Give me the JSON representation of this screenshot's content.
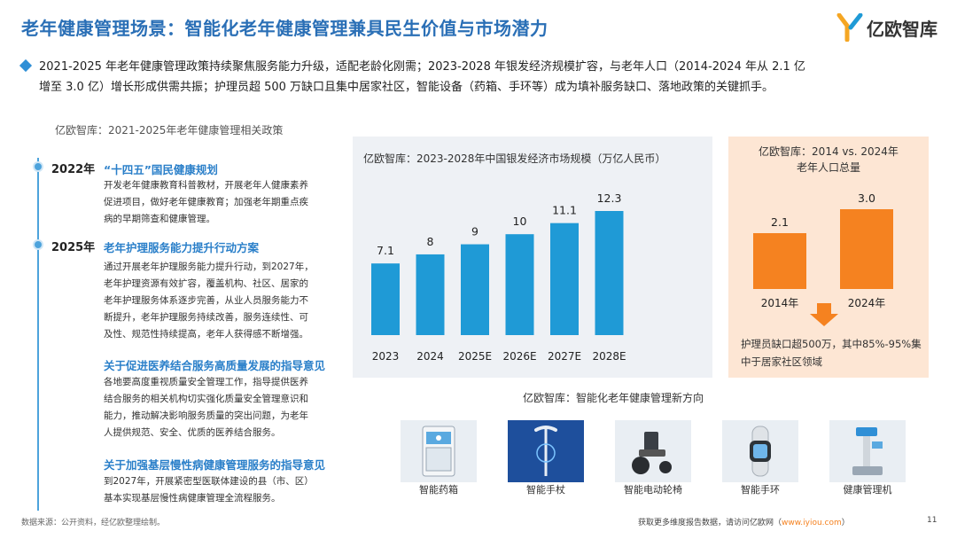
{
  "header": {
    "title": "老年健康管理场景：智能化老年健康管理兼具民生价值与市场潜力",
    "logo_text": "亿欧智库"
  },
  "summary": {
    "line1": "2021-2025 年老年健康管理政策持续聚焦服务能力升级，适配老龄化刚需；2023-2028 年银发经济规模扩容，与老年人口（2014-2024 年从 2.1 亿",
    "line2": "增至 3.0 亿）增长形成供需共振；护理员超 500 万缺口且集中居家社区，智能设备（药箱、手环等）成为填补服务缺口、落地政策的关键抓手。"
  },
  "policy": {
    "caption": "亿欧智库：2021-2025年老年健康管理相关政策",
    "items": [
      {
        "year": "2022年",
        "title": "“十四五”国民健康规划",
        "lines": [
          "开发老年健康教育科普教材，开展老年人健康素养",
          "促进项目，做好老年健康教育；加强老年期重点疾",
          "病的早期筛查和健康管理。"
        ]
      },
      {
        "year": "2025年",
        "title": "老年护理服务能力提升行动方案",
        "lines": [
          "通过开展老年护理服务能力提升行动，到2027年，",
          "老年护理资源有效扩容，覆盖机构、社区、居家的",
          "老年护理服务体系逐步完善，从业人员服务能力不",
          "断提升，老年护理服务持续改善，服务连续性、可",
          "及性、规范性持续提高，老年人获得感不断增强。"
        ]
      },
      {
        "year": "",
        "title": "关于促进医养结合服务高质量发展的指导意见",
        "lines": [
          "各地要高度重视质量安全管理工作，指导提供医养",
          "结合服务的相关机构切实强化质量安全管理意识和",
          "能力，推动解决影响服务质量的突出问题，为老年",
          "人提供规范、安全、优质的医养结合服务。"
        ]
      },
      {
        "year": "",
        "title": "关于加强基层慢性病健康管理服务的指导意见",
        "lines": [
          "到2027年，开展紧密型医联体建设的县（市、区）",
          "基本实现基层慢性病健康管理全流程服务。"
        ]
      }
    ]
  },
  "chart_data": [
    {
      "type": "bar",
      "title": "亿欧智库：2023-2028年中国银发经济市场规模（万亿人民币）",
      "categories": [
        "2023",
        "2024",
        "2025E",
        "2026E",
        "2027E",
        "2028E"
      ],
      "values": [
        7.1,
        8,
        9,
        10,
        11.1,
        12.3
      ],
      "value_labels": [
        "7.1",
        "8",
        "9",
        "10",
        "11.1",
        "12.3"
      ],
      "color": "#1f9ad6",
      "grid": false,
      "legend": "none"
    },
    {
      "type": "bar",
      "title_line1": "亿欧智库：2014 vs. 2024年",
      "title_line2": "老年人口总量",
      "categories": [
        "2014年",
        "2024年"
      ],
      "values": [
        2.1,
        3.0
      ],
      "value_labels": [
        "2.1",
        "3.0"
      ],
      "color": "#f58220",
      "grid": false,
      "legend": "none"
    }
  ],
  "gap_note": "护理员缺口超500万，其中85%-95%集中于居家社区领域",
  "devices": {
    "caption": "亿欧智库：智能化老年健康管理新方向",
    "items": [
      {
        "label": "智能药箱",
        "icon": "medicine-cabinet-icon"
      },
      {
        "label": "智能手杖",
        "icon": "smart-cane-icon"
      },
      {
        "label": "智能电动轮椅",
        "icon": "wheelchair-icon"
      },
      {
        "label": "智能手环",
        "icon": "smart-band-icon"
      },
      {
        "label": "健康管理机",
        "icon": "health-kiosk-icon"
      }
    ]
  },
  "footer": {
    "source": "数据来源：公开资料，经亿欧整理绘制。",
    "more_prefix": "获取更多维度报告数据，请访问亿欧网（",
    "more_url": "www.iyiou.com",
    "more_suffix": "）",
    "page_number": "11"
  },
  "colors": {
    "title_blue": "#2a6fb6",
    "bar_blue": "#1f9ad6",
    "orange": "#f58220",
    "orange_bg": "#fde6d4"
  }
}
